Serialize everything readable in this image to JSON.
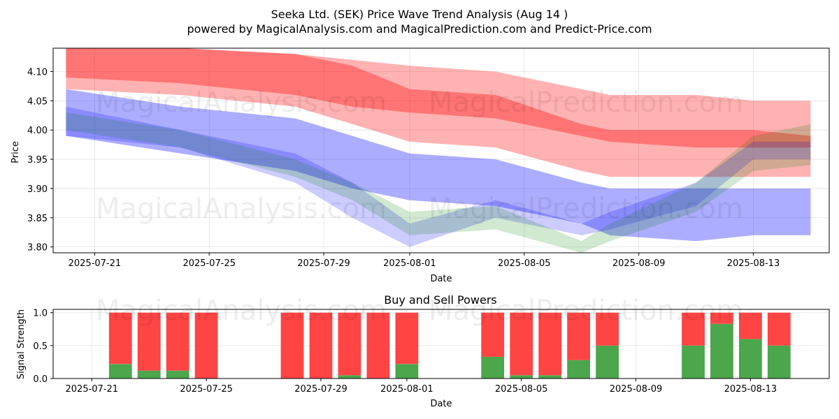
{
  "title_line1": "Seeka Ltd. (SEK) Price Wave Trend Analysis (Aug 14 )",
  "title_line2": "powered by MagicalAnalysis.com and MagicalPrediction.com and Predict-Price.com",
  "watermarks": [
    "MagicalAnalysis.com",
    "MagicalPrediction.com"
  ],
  "chart_data": [
    {
      "type": "area",
      "title": "Seeka Ltd. (SEK) Price Wave Trend Analysis (Aug 14 )",
      "xlabel": "Date",
      "ylabel": "Price",
      "x_range": [
        "2025-07-20",
        "2025-08-15"
      ],
      "ylim": [
        3.79,
        4.14
      ],
      "x_ticks": [
        "2025-07-21",
        "2025-07-25",
        "2025-07-29",
        "2025-08-01",
        "2025-08-05",
        "2025-08-09",
        "2025-08-13"
      ],
      "y_ticks": [
        "3.80",
        "3.85",
        "3.90",
        "3.95",
        "4.00",
        "4.05",
        "4.10"
      ],
      "grid": true,
      "colors": {
        "red": "#ff0000",
        "blue": "#0000ff",
        "green": "#008000"
      },
      "x": [
        "2025-07-20",
        "2025-07-24",
        "2025-07-28",
        "2025-07-30",
        "2025-08-01",
        "2025-08-04",
        "2025-08-07",
        "2025-08-08",
        "2025-08-11",
        "2025-08-13",
        "2025-08-15"
      ],
      "series": [
        {
          "name": "red-wave-outer",
          "color": "#ff0000",
          "opacity": 0.3,
          "upper": [
            4.14,
            4.14,
            4.13,
            4.12,
            4.11,
            4.1,
            4.07,
            4.06,
            4.06,
            4.05,
            4.05
          ],
          "lower": [
            4.07,
            4.06,
            4.04,
            4.01,
            3.98,
            3.97,
            3.93,
            3.92,
            3.92,
            3.92,
            3.92
          ]
        },
        {
          "name": "red-wave-inner",
          "color": "#ff0000",
          "opacity": 0.35,
          "upper": [
            4.14,
            4.14,
            4.13,
            4.11,
            4.07,
            4.06,
            4.01,
            4.0,
            4.0,
            4.0,
            3.99
          ],
          "lower": [
            4.09,
            4.08,
            4.06,
            4.04,
            4.03,
            4.02,
            3.99,
            3.98,
            3.97,
            3.97,
            3.97
          ]
        },
        {
          "name": "blue-wave-outer",
          "color": "#0000ff",
          "opacity": 0.32,
          "upper": [
            4.07,
            4.04,
            4.02,
            3.99,
            3.96,
            3.95,
            3.91,
            3.9,
            3.9,
            3.9,
            3.9
          ],
          "lower": [
            3.99,
            3.96,
            3.93,
            3.9,
            3.88,
            3.87,
            3.84,
            3.82,
            3.81,
            3.82,
            3.82
          ]
        },
        {
          "name": "blue-wave-inner",
          "color": "#0000ff",
          "opacity": 0.2,
          "upper": [
            4.04,
            4.0,
            3.96,
            3.91,
            3.84,
            3.88,
            3.84,
            3.86,
            3.91,
            3.98,
            3.98
          ],
          "lower": [
            3.99,
            3.97,
            3.91,
            3.85,
            3.8,
            3.85,
            3.82,
            3.83,
            3.87,
            3.95,
            3.95
          ]
        },
        {
          "name": "green-wave",
          "color": "#008000",
          "opacity": 0.18,
          "upper": [
            4.03,
            4.0,
            3.95,
            3.91,
            3.86,
            3.87,
            3.81,
            3.84,
            3.91,
            3.99,
            4.01
          ],
          "lower": [
            4.0,
            3.97,
            3.92,
            3.88,
            3.82,
            3.83,
            3.79,
            3.81,
            3.86,
            3.93,
            3.94
          ]
        }
      ]
    },
    {
      "type": "bar",
      "title": "Buy and Sell Powers",
      "xlabel": "Date",
      "ylabel": "Signal Strength",
      "ylim": [
        0,
        1.05
      ],
      "y_ticks": [
        "0.0",
        "0.5",
        "1.0"
      ],
      "x_ticks": [
        "2025-07-21",
        "2025-07-25",
        "2025-07-29",
        "2025-08-01",
        "2025-08-05",
        "2025-08-09",
        "2025-08-13"
      ],
      "categories": [
        "2025-07-22",
        "2025-07-23",
        "2025-07-24",
        "2025-07-25",
        "2025-07-28",
        "2025-07-29",
        "2025-07-30",
        "2025-07-31",
        "2025-08-01",
        "2025-08-04",
        "2025-08-05",
        "2025-08-06",
        "2025-08-07",
        "2025-08-08",
        "2025-08-11",
        "2025-08-12",
        "2025-08-13",
        "2025-08-14"
      ],
      "series": [
        {
          "name": "Buy",
          "color": "#4ca64c",
          "values": [
            0.22,
            0.12,
            0.12,
            0.0,
            0.0,
            0.0,
            0.05,
            0.0,
            0.22,
            0.33,
            0.05,
            0.05,
            0.28,
            0.5,
            0.5,
            0.83,
            0.6,
            0.5
          ]
        },
        {
          "name": "Sell",
          "color": "#ff4444",
          "values": [
            0.78,
            0.88,
            0.88,
            1.0,
            1.0,
            1.0,
            0.95,
            1.0,
            0.78,
            0.67,
            0.95,
            0.95,
            0.72,
            0.5,
            0.5,
            0.17,
            0.4,
            0.5
          ]
        }
      ]
    }
  ]
}
